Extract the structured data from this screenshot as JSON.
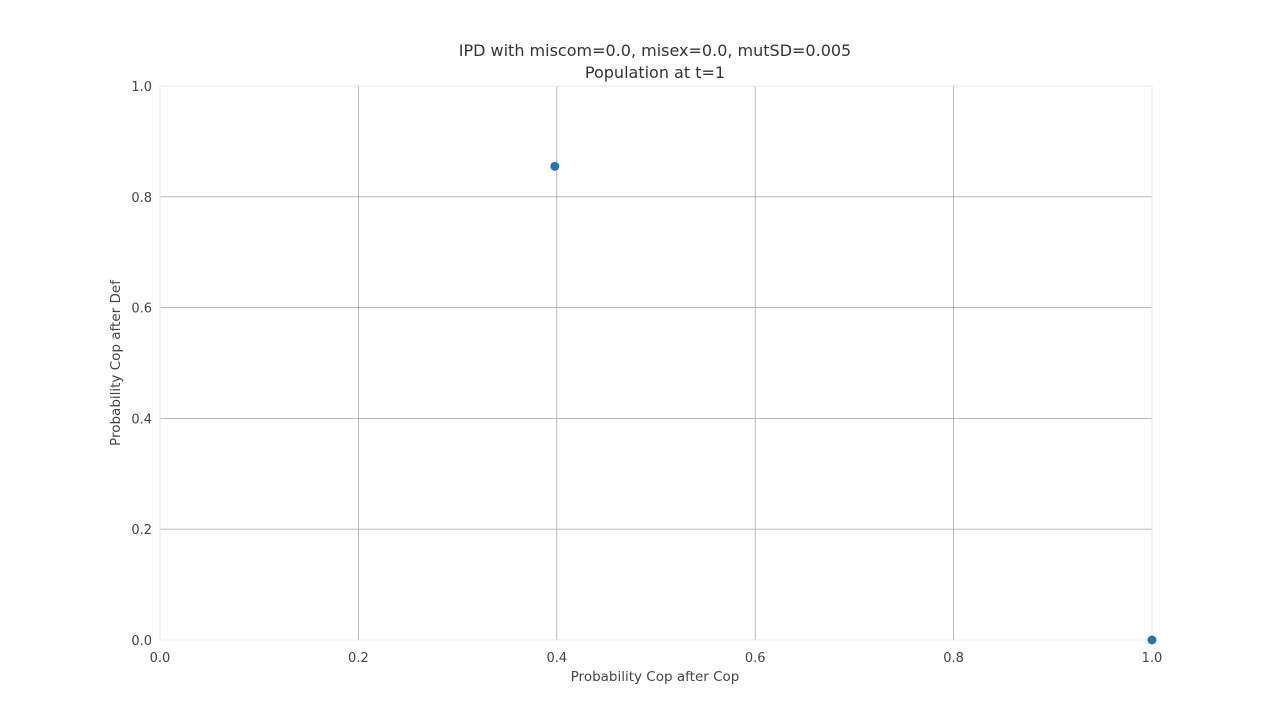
{
  "chart_data": {
    "type": "scatter",
    "title": "IPD with miscom=0.0, misex=0.0, mutSD=0.005",
    "subtitle": "Population at t=1",
    "xlabel": "Probability Cop after Cop",
    "ylabel": "Probability Cop after Def",
    "xlim": [
      0.0,
      1.0
    ],
    "ylim": [
      0.0,
      1.0
    ],
    "xticks": [
      "0.0",
      "0.2",
      "0.4",
      "0.6",
      "0.8",
      "1.0"
    ],
    "yticks": [
      "0.0",
      "0.2",
      "0.4",
      "0.6",
      "0.8",
      "1.0"
    ],
    "grid": true,
    "series": [
      {
        "color": "#1f77b4",
        "points": [
          {
            "x": 0.398,
            "y": 0.855
          },
          {
            "x": 1.0,
            "y": 0.0
          }
        ]
      }
    ]
  }
}
